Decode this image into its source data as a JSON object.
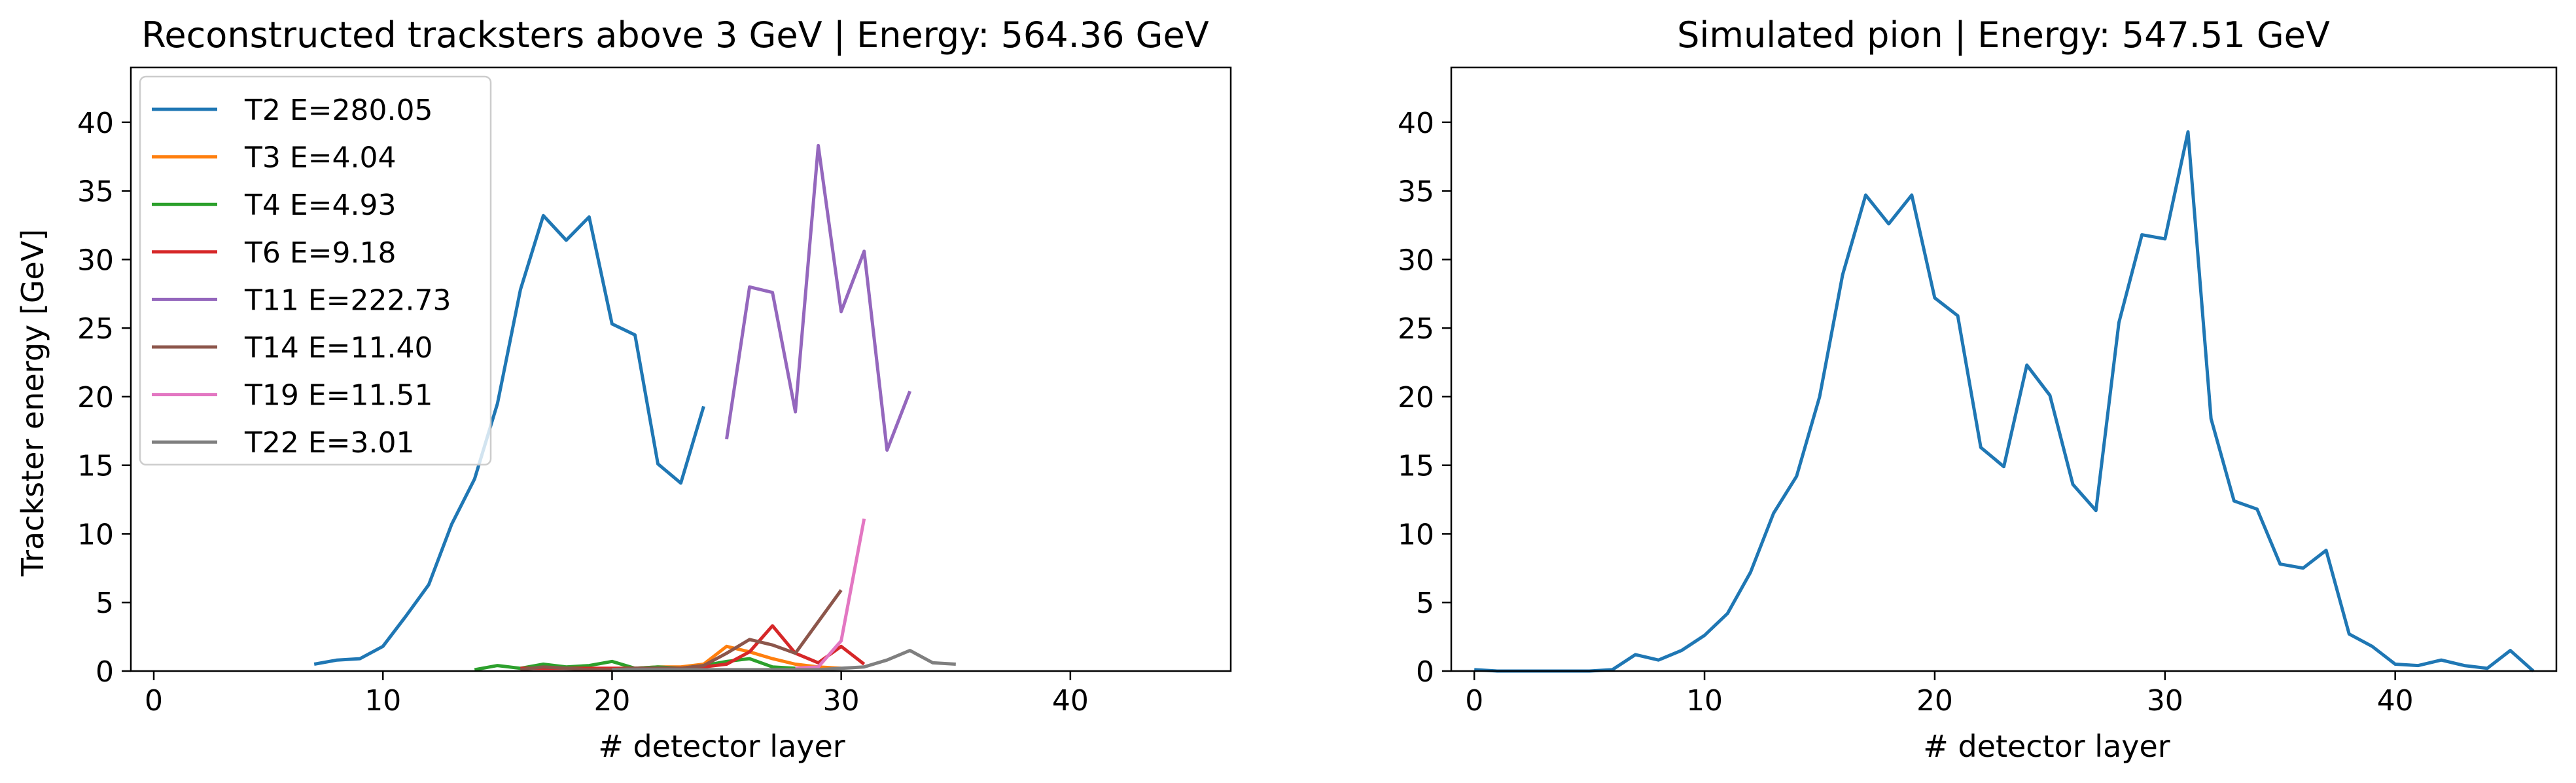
{
  "chart_data": [
    {
      "type": "line",
      "title": "Reconstructed tracksters above 3 GeV | Energy: 564.36 GeV",
      "xlabel": "# detector layer",
      "ylabel": "Trackster energy [GeV]",
      "xlim": [
        -1,
        47
      ],
      "ylim": [
        0,
        44
      ],
      "xticks": [
        0,
        10,
        20,
        30,
        40
      ],
      "yticks": [
        0,
        5,
        10,
        15,
        20,
        25,
        30,
        35,
        40
      ],
      "grid": false,
      "legend_position": "upper-left",
      "series": [
        {
          "name": "T2 E=280.05",
          "color": "#1f77b4",
          "x": [
            7,
            8,
            9,
            10,
            11,
            12,
            13,
            14,
            15,
            16,
            17,
            18,
            19,
            20,
            21,
            22,
            23,
            24
          ],
          "y": [
            0.5,
            0.8,
            0.9,
            1.8,
            4.0,
            6.3,
            10.7,
            14.0,
            19.5,
            27.8,
            33.2,
            31.4,
            33.1,
            25.3,
            24.5,
            15.1,
            13.7,
            19.3
          ]
        },
        {
          "name": "T3 E=4.04",
          "color": "#ff7f0e",
          "x": [
            19,
            20,
            21,
            22,
            23,
            24,
            25,
            26,
            27,
            28,
            29,
            30
          ],
          "y": [
            0.1,
            0.1,
            0.2,
            0.3,
            0.3,
            0.5,
            1.8,
            1.4,
            0.9,
            0.5,
            0.3,
            0.2
          ]
        },
        {
          "name": "T4 E=4.93",
          "color": "#2ca02c",
          "x": [
            14,
            15,
            16,
            17,
            18,
            19,
            20,
            21,
            22,
            23,
            24,
            25,
            26,
            27,
            28
          ],
          "y": [
            0.1,
            0.4,
            0.2,
            0.5,
            0.3,
            0.4,
            0.7,
            0.2,
            0.3,
            0.2,
            0.4,
            0.7,
            0.9,
            0.3,
            0.2
          ]
        },
        {
          "name": "T6 E=9.18",
          "color": "#d62728",
          "x": [
            16,
            17,
            18,
            19,
            20,
            21,
            22,
            23,
            24,
            25,
            26,
            27,
            28,
            29,
            30,
            31
          ],
          "y": [
            0.2,
            0.2,
            0.2,
            0.2,
            0.2,
            0.2,
            0.2,
            0.2,
            0.3,
            0.5,
            1.4,
            3.3,
            1.3,
            0.6,
            1.8,
            0.5
          ]
        },
        {
          "name": "T11 E=222.73",
          "color": "#9467bd",
          "x": [
            25,
            26,
            27,
            28,
            29,
            30,
            31,
            32,
            33
          ],
          "y": [
            16.9,
            28.0,
            27.6,
            18.9,
            38.3,
            26.2,
            30.6,
            16.1,
            20.4
          ]
        },
        {
          "name": "T14 E=11.40",
          "color": "#8c564b",
          "x": [
            16,
            17,
            18,
            19,
            20,
            21,
            22,
            23,
            24,
            25,
            26,
            27,
            28,
            29,
            30
          ],
          "y": [
            0.1,
            0.3,
            0.2,
            0.1,
            0.1,
            0.2,
            0.2,
            0.2,
            0.4,
            1.3,
            2.3,
            1.9,
            1.3,
            3.6,
            5.9
          ]
        },
        {
          "name": "T19 E=11.51",
          "color": "#e377c2",
          "x": [
            28,
            29,
            30,
            31
          ],
          "y": [
            0.2,
            0.3,
            2.2,
            11.1
          ]
        },
        {
          "name": "T22 E=3.01",
          "color": "#7f7f7f",
          "x": [
            20,
            21,
            22,
            23,
            24,
            25,
            26,
            27,
            28,
            29,
            30,
            31,
            32,
            33,
            34,
            35
          ],
          "y": [
            0.1,
            0.1,
            0.1,
            0.1,
            0.1,
            0.1,
            0.1,
            0.1,
            0.1,
            0.1,
            0.2,
            0.3,
            0.8,
            1.5,
            0.6,
            0.5
          ]
        }
      ]
    },
    {
      "type": "line",
      "title": "Simulated pion | Energy: 547.51 GeV",
      "xlabel": "# detector layer",
      "ylabel": "",
      "xlim": [
        -1,
        47
      ],
      "ylim": [
        0,
        44
      ],
      "xticks": [
        0,
        10,
        20,
        30,
        40
      ],
      "yticks": [
        0,
        5,
        10,
        15,
        20,
        25,
        30,
        35,
        40
      ],
      "grid": false,
      "series": [
        {
          "color": "#1f77b4",
          "x": [
            0,
            1,
            2,
            3,
            4,
            5,
            6,
            7,
            8,
            9,
            10,
            11,
            12,
            13,
            14,
            15,
            16,
            17,
            18,
            19,
            20,
            21,
            22,
            23,
            24,
            25,
            26,
            27,
            28,
            29,
            30,
            31,
            32,
            33,
            34,
            35,
            36,
            37,
            38,
            39,
            40,
            41,
            42,
            43,
            44,
            45,
            46
          ],
          "y": [
            0.1,
            0.0,
            0.0,
            0.0,
            0.0,
            0.0,
            0.1,
            1.2,
            0.8,
            1.5,
            2.6,
            4.2,
            7.2,
            11.5,
            14.2,
            20.0,
            28.9,
            34.7,
            32.6,
            34.7,
            27.2,
            25.9,
            16.3,
            14.9,
            22.3,
            20.1,
            13.6,
            11.7,
            25.4,
            31.8,
            31.5,
            39.3,
            18.4,
            12.4,
            11.8,
            7.8,
            7.5,
            8.8,
            2.7,
            1.8,
            0.5,
            0.4,
            0.8,
            0.4,
            0.2,
            1.5,
            0.0
          ]
        }
      ]
    }
  ]
}
